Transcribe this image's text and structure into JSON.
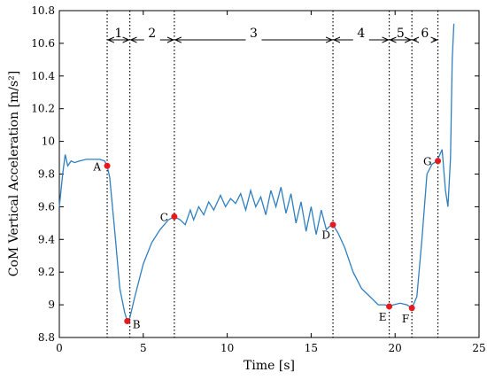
{
  "chart_data": {
    "type": "line",
    "title": "",
    "xlabel": "Time [s]",
    "ylabel": "CoM Vertical Acceleration [m/s²]",
    "xlim": [
      0,
      25
    ],
    "ylim": [
      8.8,
      10.8
    ],
    "x_ticks": [
      "0",
      "5",
      "10",
      "15",
      "20",
      "25"
    ],
    "y_ticks": [
      "8.8",
      "9",
      "9.2",
      "9.4",
      "9.6",
      "9.8",
      "10",
      "10.2",
      "10.4",
      "10.6",
      "10.8"
    ],
    "grid": false,
    "line_color": "#2f7fc1",
    "marker_color": "#e41a1c",
    "series": [
      {
        "x": [
          0,
          0.2,
          0.35,
          0.5,
          0.7,
          0.9,
          1.2,
          1.6,
          2.0,
          2.4,
          2.7,
          2.85,
          3.0,
          3.3,
          3.6,
          3.9,
          4.05,
          4.2,
          4.5,
          5.0,
          5.5,
          6.0,
          6.5,
          6.85,
          7.2,
          7.5,
          7.8,
          8.0,
          8.3,
          8.6,
          8.9,
          9.2,
          9.6,
          9.9,
          10.2,
          10.5,
          10.8,
          11.1,
          11.4,
          11.7,
          12.0,
          12.3,
          12.6,
          12.9,
          13.2,
          13.5,
          13.8,
          14.1,
          14.4,
          14.7,
          15.0,
          15.3,
          15.6,
          15.9,
          16.1,
          16.3,
          16.6,
          17.0,
          17.5,
          18.0,
          18.5,
          19.0,
          19.4,
          19.65,
          19.9,
          20.3,
          20.7,
          21.0,
          21.3,
          21.6,
          21.9,
          22.2,
          22.5,
          22.8,
          23.0,
          23.15,
          23.3,
          23.4,
          23.5
        ],
        "y": [
          9.6,
          9.8,
          9.92,
          9.85,
          9.88,
          9.87,
          9.88,
          9.89,
          9.89,
          9.89,
          9.88,
          9.85,
          9.78,
          9.45,
          9.1,
          8.95,
          8.9,
          8.92,
          9.05,
          9.25,
          9.38,
          9.46,
          9.52,
          9.54,
          9.52,
          9.49,
          9.58,
          9.52,
          9.6,
          9.55,
          9.63,
          9.58,
          9.67,
          9.6,
          9.65,
          9.62,
          9.68,
          9.58,
          9.7,
          9.6,
          9.66,
          9.55,
          9.7,
          9.6,
          9.72,
          9.56,
          9.68,
          9.5,
          9.63,
          9.45,
          9.6,
          9.43,
          9.58,
          9.46,
          9.48,
          9.49,
          9.44,
          9.35,
          9.2,
          9.1,
          9.05,
          9.0,
          9.0,
          8.99,
          9.0,
          9.01,
          9.0,
          8.98,
          9.05,
          9.4,
          9.8,
          9.86,
          9.88,
          9.95,
          9.7,
          9.6,
          9.9,
          10.5,
          10.72
        ]
      }
    ],
    "points": [
      {
        "label": "A",
        "x": 2.85,
        "y": 9.85,
        "label_side": "left"
      },
      {
        "label": "B",
        "x": 4.05,
        "y": 8.9,
        "label_side": "right"
      },
      {
        "label": "C",
        "x": 6.85,
        "y": 9.54,
        "label_side": "left"
      },
      {
        "label": "D",
        "x": 16.3,
        "y": 9.49,
        "label_side": "below-left"
      },
      {
        "label": "E",
        "x": 19.65,
        "y": 8.99,
        "label_side": "below-left"
      },
      {
        "label": "F",
        "x": 21.0,
        "y": 8.98,
        "label_side": "below-left"
      },
      {
        "label": "G",
        "x": 22.55,
        "y": 9.88,
        "label_side": "left"
      }
    ],
    "phase_boundaries": [
      2.85,
      4.2,
      6.85,
      16.3,
      19.65,
      21.0,
      22.55
    ],
    "phases": [
      {
        "label": "1",
        "start": 2.85,
        "end": 4.2
      },
      {
        "label": "2",
        "start": 4.2,
        "end": 6.85
      },
      {
        "label": "3",
        "start": 6.85,
        "end": 16.3
      },
      {
        "label": "4",
        "start": 16.3,
        "end": 19.65
      },
      {
        "label": "5",
        "start": 19.65,
        "end": 21.0
      },
      {
        "label": "6",
        "start": 21.0,
        "end": 22.55
      }
    ]
  }
}
